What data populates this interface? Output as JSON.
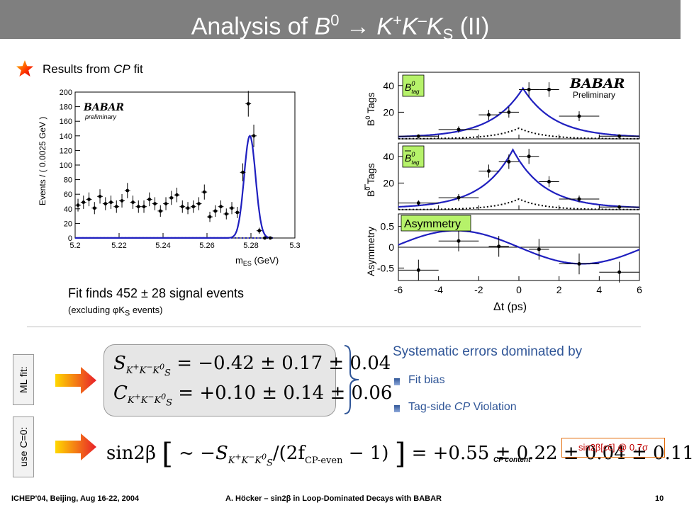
{
  "slide": {
    "title_prefix": "Analysis of ",
    "title_B": "B",
    "title_B_sup": "0",
    "title_arrow": " → ",
    "title_K1": "K",
    "title_K1_sup": "+",
    "title_K2": "K",
    "title_K2_sup": "–",
    "title_K3": "K",
    "title_K3_sub": "S",
    "title_suffix": "  (II)",
    "results_text": "Results from ",
    "results_cp": "CP",
    "results_fit": " fit",
    "fit_finds": "Fit finds 452 ± 28 signal events",
    "fit_sub": "(excluding φK",
    "fit_sub_s": "S",
    "fit_sub_end": " events)"
  },
  "colors": {
    "title_bg": "#7f7f7f",
    "fit_curve": "#1f1fbf",
    "accent_blue": "#2f5597",
    "arrow_red": "#e8202a",
    "arrow_yellow": "#ffd800",
    "box_orange": "#e36c09"
  },
  "mes_chart": {
    "type": "scatter",
    "logo": "BABAR",
    "logo_sub": "preliminary",
    "xlabel": "m",
    "xlabel_sub": "ES",
    "xlabel_unit": " (GeV)",
    "ylabel": "Events / ( 0.0025 GeV )",
    "xlim": [
      5.2,
      5.3
    ],
    "ylim": [
      0,
      200
    ],
    "xticks": [
      "5.2",
      "5.22",
      "5.24",
      "5.26",
      "5.28",
      "5.3"
    ],
    "yticks": [
      "0",
      "20",
      "40",
      "60",
      "80",
      "100",
      "120",
      "140",
      "160",
      "180",
      "200"
    ]
  },
  "chart_data": [
    {
      "type": "scatter",
      "x": [
        5.2013,
        5.2038,
        5.2063,
        5.2088,
        5.2113,
        5.2138,
        5.2163,
        5.2188,
        5.2213,
        5.2238,
        5.2263,
        5.2288,
        5.2313,
        5.2338,
        5.2363,
        5.2388,
        5.2413,
        5.2438,
        5.2463,
        5.2488,
        5.2513,
        5.2538,
        5.2563,
        5.2588,
        5.2613,
        5.2638,
        5.2663,
        5.2688,
        5.2713,
        5.2738,
        5.2763,
        5.2788,
        5.2813,
        5.2838,
        5.2863,
        5.2888
      ],
      "y": [
        45,
        49,
        53,
        41,
        57,
        47,
        49,
        43,
        51,
        65,
        49,
        43,
        43,
        53,
        47,
        37,
        47,
        55,
        59,
        43,
        41,
        43,
        47,
        63,
        29,
        37,
        43,
        33,
        41,
        35,
        90,
        184,
        140,
        10,
        0,
        0
      ],
      "xlim": [
        5.2,
        5.3
      ],
      "ylim": [
        0,
        200
      ],
      "xlabel": "mES (GeV)",
      "ylabel": "Events / ( 0.0025 GeV )"
    },
    {
      "type": "scatter",
      "x": [
        -5,
        -3,
        -1.5,
        -0.5,
        0.5,
        1.5,
        3,
        5
      ],
      "y": [
        2,
        7,
        18,
        20,
        37,
        37,
        17,
        2
      ],
      "xlim": [
        -6,
        6
      ],
      "ylim": [
        0,
        50
      ],
      "ylabel": "B0 Tags",
      "legend": [
        "B0tag"
      ]
    },
    {
      "type": "scatter",
      "x": [
        -5,
        -3,
        -1.5,
        -0.5,
        0.5,
        1.5,
        3,
        5
      ],
      "y": [
        5,
        9,
        29,
        36,
        40,
        21,
        8,
        2
      ],
      "xlim": [
        -6,
        6
      ],
      "ylim": [
        0,
        50
      ],
      "ylabel": "anti-B0 Tags",
      "legend": [
        "anti-B0tag"
      ]
    },
    {
      "type": "scatter",
      "x": [
        -5,
        -3,
        -1,
        1,
        3,
        5
      ],
      "y": [
        -0.55,
        0.15,
        0.02,
        -0.05,
        -0.4,
        -0.6
      ],
      "xlim": [
        -6,
        6
      ],
      "ylim": [
        -0.8,
        0.8
      ],
      "xlabel": "Δt (ps)",
      "ylabel": "Asymmetry",
      "legend": [
        "Asymmetry"
      ]
    }
  ],
  "dt_chart": {
    "logo": "BABAR",
    "logo_sub": "Preliminary",
    "top_ylabel": "B",
    "top_ylabel_sup": "0",
    "top_ylabel_end": " Tags",
    "mid_ylabel": "B",
    "mid_ylabel_sup": "0",
    "mid_ylabel_end": " Tags",
    "asym_ylabel": "Asymmetry",
    "tag_top": "B",
    "tag_top_sup": "0",
    "tag_top_sub": "tag",
    "tag_mid": "B",
    "tag_mid_sup": "0",
    "tag_mid_sub": "tag",
    "tag_asym": "Asymmetry",
    "xlabel": "Δt (ps)",
    "xticks": [
      "-6",
      "-4",
      "-2",
      "0",
      "2",
      "4",
      "6"
    ],
    "top_yticks": [
      "20",
      "40"
    ],
    "mid_yticks": [
      "20",
      "40"
    ],
    "asym_yticks": [
      "0.5",
      "0",
      "-0.5"
    ]
  },
  "equations": {
    "ml_label": "ML fit:",
    "c0_label": "use C=0:",
    "S_sym": "S",
    "C_sym": "C",
    "sub_kk": "K",
    "sub_kk_sup1": "+",
    "sub_kk_k2": "K",
    "sub_kk_sup2": "−",
    "sub_kk_k3": "K",
    "sub_kk_sup3": "0",
    "sub_kk_sub3": "S",
    "s_value": "= −0.42 ± 0.17 ± 0.04",
    "c_value": "= +0.10 ± 0.14 ± 0.06",
    "sin_lhs": "sin2β",
    "sin_tilde": "~ −",
    "sin_div": "/(2f",
    "sin_f_sub": "CP-even",
    "sin_minus1": " − 1)",
    "sin_value": "= +0.55 ± 0.22 ± 0.04 ± 0.11",
    "cp_content": "CP content",
    "sinbox_text": "sin2β[cc̄] @ 0.7σ"
  },
  "systematics": {
    "title": "Systematic errors dominated by",
    "item1": "Fit bias",
    "item2_pre": "Tag-side ",
    "item2_cp": "CP",
    "item2_post": " Violation"
  },
  "footer": {
    "left": "ICHEP'04, Beijing, Aug 16-22, 2004",
    "center": "A. Höcker – sin2β in Loop-Dominated Decays with BABAR",
    "page": "10"
  }
}
